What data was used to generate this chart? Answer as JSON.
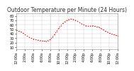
{
  "title": "Outdoor Temperature per Minute (24 Hours)",
  "line_color": "#ff0000",
  "bg_color": "#ffffff",
  "grid_color": "#cccccc",
  "ylim": [
    5,
    85
  ],
  "xlim": [
    0,
    1440
  ],
  "x_points": [
    0,
    30,
    60,
    90,
    120,
    150,
    180,
    210,
    240,
    270,
    300,
    330,
    360,
    390,
    420,
    450,
    480,
    510,
    540,
    570,
    600,
    630,
    660,
    690,
    720,
    750,
    780,
    810,
    840,
    870,
    900,
    930,
    960,
    990,
    1020,
    1050,
    1080,
    1110,
    1140,
    1170,
    1200,
    1230,
    1260,
    1290,
    1320,
    1350,
    1380,
    1410,
    1440
  ],
  "y_points": [
    48,
    46,
    44,
    42,
    38,
    35,
    32,
    30,
    28,
    27,
    26,
    25,
    24,
    24,
    23,
    25,
    27,
    32,
    38,
    45,
    52,
    58,
    63,
    67,
    70,
    72,
    73,
    72,
    70,
    68,
    65,
    62,
    60,
    58,
    57,
    57,
    58,
    57,
    56,
    55,
    52,
    50,
    47,
    44,
    42,
    40,
    38,
    37,
    35
  ],
  "xtick_positions": [
    0,
    120,
    240,
    360,
    480,
    600,
    720,
    840,
    960,
    1080,
    1200,
    1320,
    1440
  ],
  "xtick_labels": [
    "12:00a",
    "2:00a",
    "4:00a",
    "6:00a",
    "8:00a",
    "10:00a",
    "12:00p",
    "2:00p",
    "4:00p",
    "6:00p",
    "8:00p",
    "10:00p",
    "12:00a"
  ],
  "ytick_positions": [
    10,
    20,
    30,
    40,
    50,
    60,
    70,
    80
  ],
  "ytick_labels": [
    "10",
    "20",
    "30",
    "40",
    "50",
    "60",
    "70",
    "80"
  ],
  "vline_x": 480,
  "title_fontsize": 5.5,
  "tick_fontsize": 3.5,
  "marker": ".",
  "line_width": 0.6,
  "marker_size": 1.2
}
